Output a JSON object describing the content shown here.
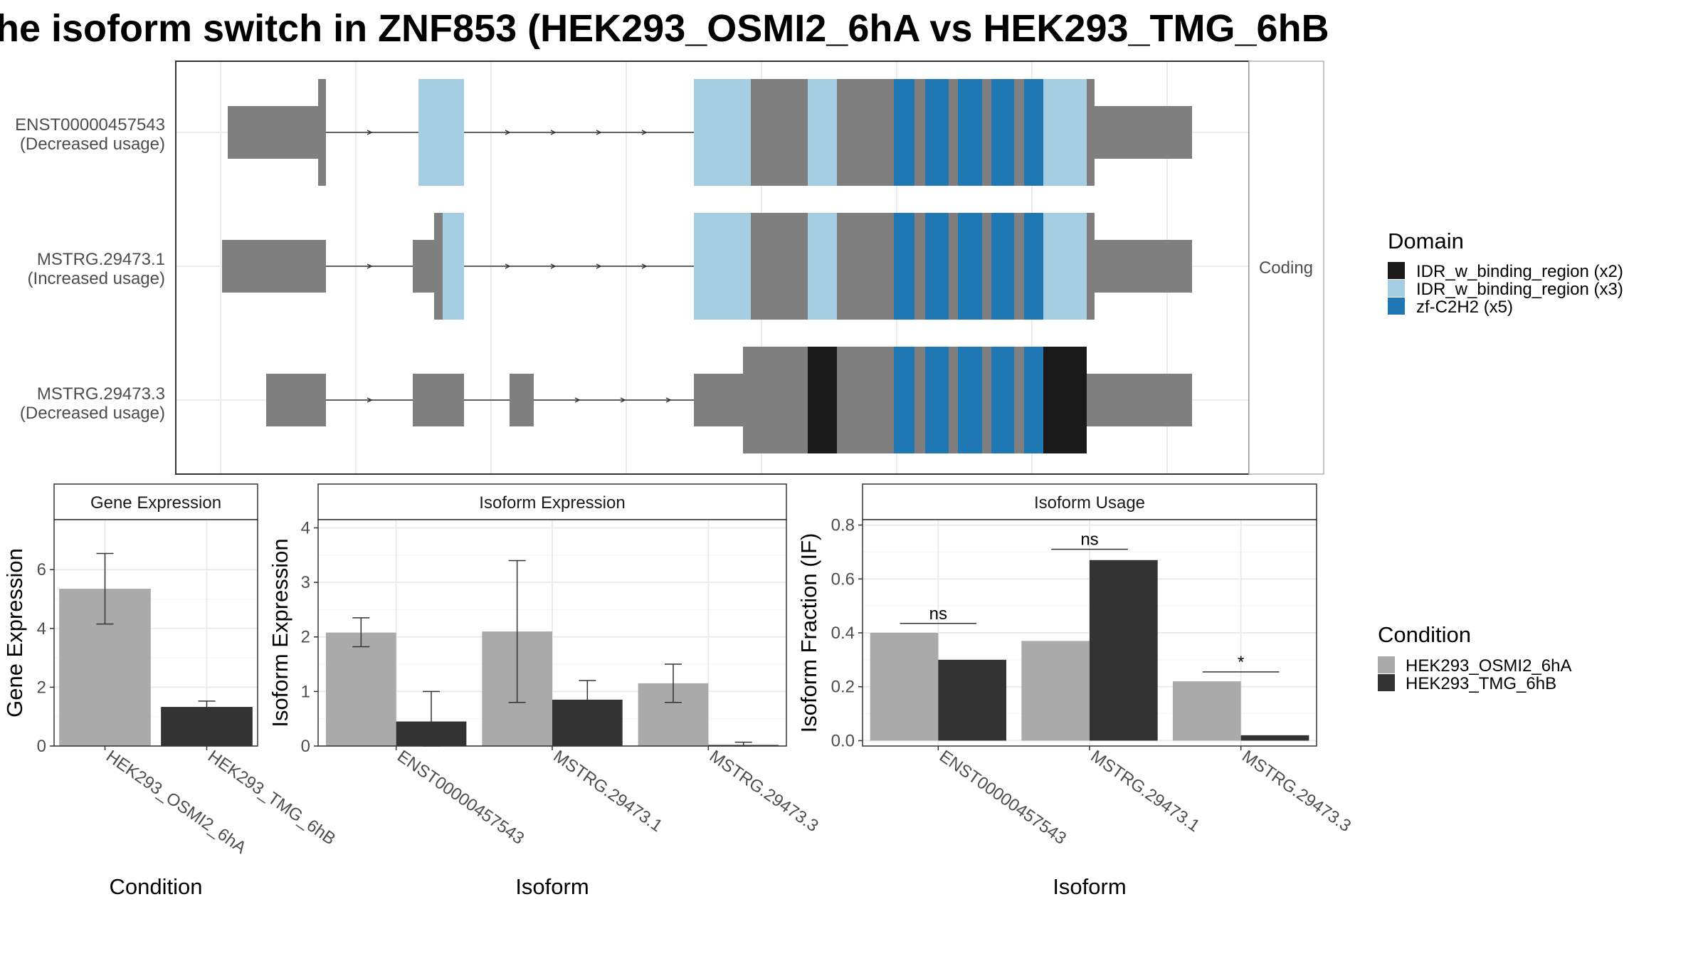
{
  "title": "he isoform switch in ZNF853 (HEK293_OSMI2_6hA vs HEK293_TMG_6hB",
  "colors": {
    "exon_gray": "#7f7f7f",
    "idr_x2": "#1a1a1a",
    "idr_x3": "#a6cee3",
    "zf": "#1f78b4",
    "cond_a": "#aaaaaa",
    "cond_b": "#333333"
  },
  "transcripts": {
    "strip_label": "Coding",
    "items": [
      {
        "id": "ENST00000457543",
        "usage": "(Decreased usage)"
      },
      {
        "id": "MSTRG.29473.1",
        "usage": "(Increased usage)"
      },
      {
        "id": "MSTRG.29473.3",
        "usage": "(Decreased usage)"
      }
    ]
  },
  "domain_legend": {
    "title": "Domain",
    "items": [
      {
        "label": "IDR_w_binding_region (x2)",
        "color": "#1a1a1a"
      },
      {
        "label": "IDR_w_binding_region (x3)",
        "color": "#a6cee3"
      },
      {
        "label": "zf-C2H2 (x5)",
        "color": "#1f78b4"
      }
    ]
  },
  "condition_legend": {
    "title": "Condition",
    "items": [
      {
        "label": "HEK293_OSMI2_6hA",
        "color": "#aaaaaa"
      },
      {
        "label": "HEK293_TMG_6hB",
        "color": "#333333"
      }
    ]
  },
  "chart_data": [
    {
      "type": "bar",
      "title": "Gene Expression",
      "xlabel": "Condition",
      "ylabel": "Gene Expression",
      "categories": [
        "HEK293_OSMI2_6hA",
        "HEK293_TMG_6hB"
      ],
      "values": [
        5.35,
        1.33
      ],
      "error_low": [
        4.15,
        1.13
      ],
      "error_high": [
        6.55,
        1.53
      ],
      "ylim": [
        0,
        7.7
      ],
      "yticks": [
        0,
        2,
        4,
        6
      ],
      "grid": true
    },
    {
      "type": "bar",
      "title": "Isoform Expression",
      "xlabel": "Isoform",
      "ylabel": "Isoform Expression",
      "categories": [
        "ENST00000457543",
        "MSTRG.29473.1",
        "MSTRG.29473.3"
      ],
      "series": [
        {
          "name": "HEK293_OSMI2_6hA",
          "values": [
            2.08,
            2.1,
            1.15
          ],
          "error_low": [
            1.82,
            0.8,
            0.8
          ],
          "error_high": [
            2.35,
            3.4,
            1.5
          ]
        },
        {
          "name": "HEK293_TMG_6hB",
          "values": [
            0.45,
            0.85,
            0.02
          ],
          "error_low": [
            0.0,
            0.5,
            0.0
          ],
          "error_high": [
            1.0,
            1.2,
            0.07
          ]
        }
      ],
      "ylim": [
        0,
        4.15
      ],
      "yticks": [
        0,
        1,
        2,
        3,
        4
      ],
      "grid": true
    },
    {
      "type": "bar",
      "title": "Isoform Usage",
      "xlabel": "Isoform",
      "ylabel": "Isoform Fraction (IF)",
      "categories": [
        "ENST00000457543",
        "MSTRG.29473.1",
        "MSTRG.29473.3"
      ],
      "series": [
        {
          "name": "HEK293_OSMI2_6hA",
          "values": [
            0.4,
            0.37,
            0.22
          ]
        },
        {
          "name": "HEK293_TMG_6hB",
          "values": [
            0.3,
            0.67,
            0.02
          ]
        }
      ],
      "significance": [
        {
          "label": "ns",
          "y": 0.435
        },
        {
          "label": "ns",
          "y": 0.71
        },
        {
          "label": "*",
          "y": 0.255
        }
      ],
      "yticks": [
        0.0,
        0.2,
        0.4,
        0.6,
        0.8
      ],
      "ylim": [
        -0.02,
        0.82
      ],
      "grid": true
    }
  ]
}
